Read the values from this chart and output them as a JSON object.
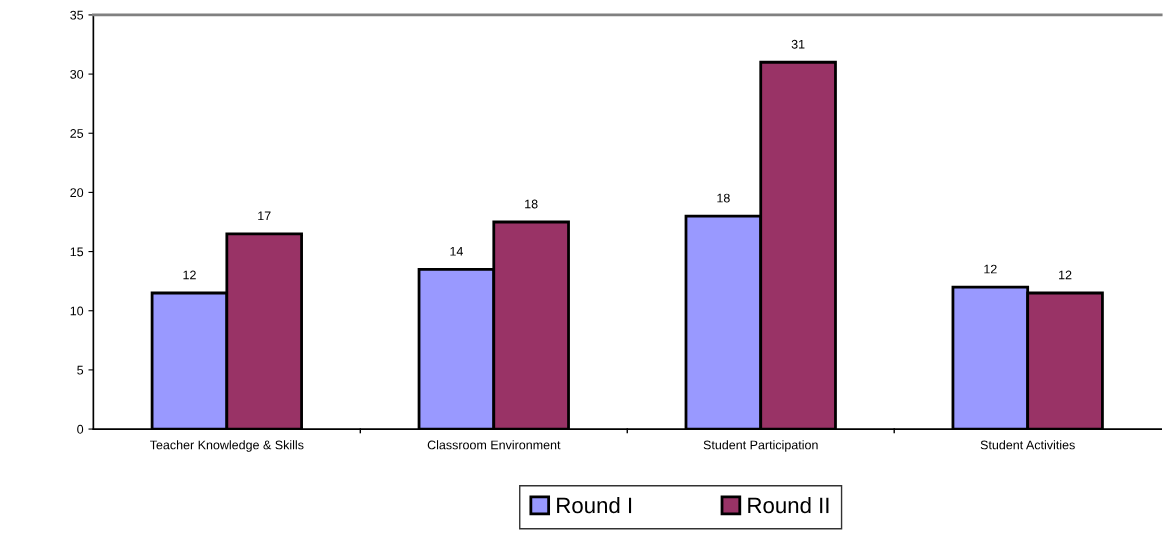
{
  "chart_data": {
    "type": "bar",
    "categories": [
      "Teacher Knowledge & Skills",
      "Classroom Environment",
      "Student Participation",
      "Student Activities"
    ],
    "series": [
      {
        "name": "Round I",
        "color": "#9999ff",
        "values": [
          11.5,
          13.5,
          18,
          12
        ],
        "value_labels": [
          "12",
          "14",
          "18",
          "12"
        ]
      },
      {
        "name": "Round II",
        "color": "#993366",
        "values": [
          16.5,
          17.5,
          31,
          11.5
        ],
        "value_labels": [
          "17",
          "18",
          "31",
          "12"
        ]
      }
    ],
    "ylim": [
      0,
      35
    ],
    "yticks": [
      0,
      5,
      10,
      15,
      20,
      25,
      30,
      35
    ],
    "grid": false,
    "legend": "bottom"
  }
}
